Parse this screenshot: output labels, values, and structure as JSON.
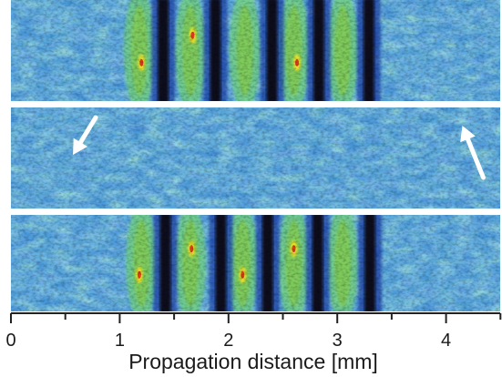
{
  "chart_data": {
    "type": "heatmap",
    "xlabel": "Propagation distance [mm]",
    "xlim": [
      0,
      4.6
    ],
    "xticks": [
      0,
      1,
      2,
      3,
      4
    ],
    "xtick_labels": [
      "0",
      "1",
      "2",
      "3",
      "4"
    ],
    "minor_ticks": [
      0.5,
      1.5,
      2.5,
      3.5,
      4.5
    ],
    "colormap": [
      "#0b0f2e",
      "#1f3fa8",
      "#2f7fd8",
      "#4fc6e4",
      "#6fd39a",
      "#7ec83c",
      "#e8e02a",
      "#e03c1e"
    ],
    "panels": [
      {
        "name": "top",
        "fringe_region_mm": [
          1.1,
          3.4
        ],
        "dark_fringes_mm": [
          1.4,
          1.88,
          2.4,
          2.83,
          3.29
        ],
        "bright_fringes_mm": [
          1.18,
          1.65,
          2.15,
          2.6,
          3.05
        ],
        "hot_spots_mm": [
          1.2,
          1.67,
          2.63
        ]
      },
      {
        "name": "middle",
        "fringe_region_mm": [],
        "arrows": [
          {
            "tip_mm": 0.57,
            "direction": "down-left"
          },
          {
            "tip_mm": 4.15,
            "direction": "up-left"
          }
        ]
      },
      {
        "name": "bottom",
        "fringe_region_mm": [
          1.1,
          3.4
        ],
        "dark_fringes_mm": [
          1.42,
          1.93,
          2.36,
          2.82,
          3.3
        ],
        "bright_fringes_mm": [
          1.2,
          1.65,
          2.13,
          2.6,
          3.05
        ],
        "hot_spots_mm": [
          1.18,
          1.66,
          2.13,
          2.6
        ]
      }
    ]
  }
}
